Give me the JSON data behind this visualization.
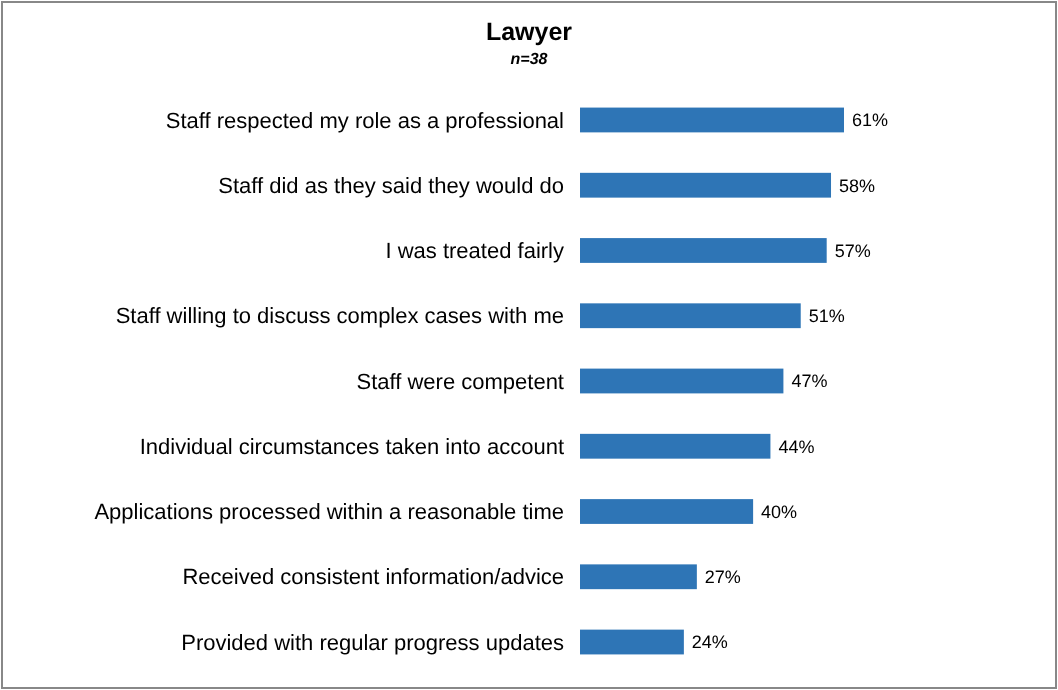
{
  "chart_data": {
    "type": "bar",
    "orientation": "horizontal",
    "title": "Lawyer",
    "subtitle": "n=38",
    "categories": [
      "Staff respected my role as a professional",
      "Staff did as they said they would do",
      "I was treated fairly",
      "Staff willing to discuss complex cases with me",
      "Staff were competent",
      "Individual circumstances taken into account",
      "Applications processed within a reasonable time",
      "Received consistent information/advice",
      "Provided with regular progress updates"
    ],
    "values": [
      61,
      58,
      57,
      51,
      47,
      44,
      40,
      27,
      24
    ],
    "value_labels": [
      "61%",
      "58%",
      "57%",
      "51%",
      "47%",
      "44%",
      "40%",
      "27%",
      "24%"
    ],
    "color": "#2e75b6"
  }
}
